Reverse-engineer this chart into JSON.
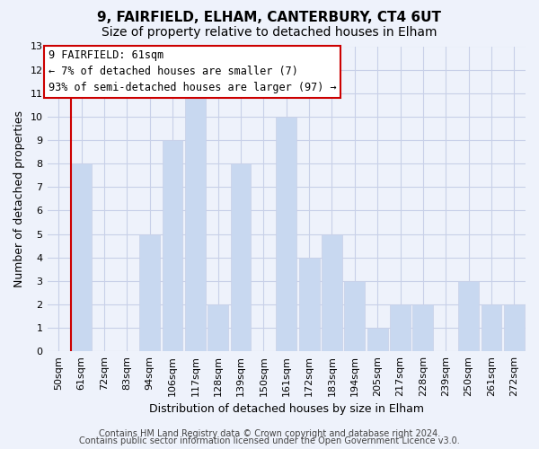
{
  "title": "9, FAIRFIELD, ELHAM, CANTERBURY, CT4 6UT",
  "subtitle": "Size of property relative to detached houses in Elham",
  "xlabel": "Distribution of detached houses by size in Elham",
  "ylabel": "Number of detached properties",
  "categories": [
    "50sqm",
    "61sqm",
    "72sqm",
    "83sqm",
    "94sqm",
    "106sqm",
    "117sqm",
    "128sqm",
    "139sqm",
    "150sqm",
    "161sqm",
    "172sqm",
    "183sqm",
    "194sqm",
    "205sqm",
    "217sqm",
    "228sqm",
    "239sqm",
    "250sqm",
    "261sqm",
    "272sqm"
  ],
  "values": [
    0,
    8,
    0,
    0,
    5,
    9,
    11,
    2,
    8,
    0,
    10,
    4,
    5,
    3,
    1,
    2,
    2,
    0,
    3,
    2,
    2
  ],
  "bar_color": "#c8d8f0",
  "marker_bar_index": 1,
  "ylim": [
    0,
    13
  ],
  "yticks": [
    0,
    1,
    2,
    3,
    4,
    5,
    6,
    7,
    8,
    9,
    10,
    11,
    12,
    13
  ],
  "annotation_title": "9 FAIRFIELD: 61sqm",
  "annotation_line1": "← 7% of detached houses are smaller (7)",
  "annotation_line2": "93% of semi-detached houses are larger (97) →",
  "annotation_box_color": "#ffffff",
  "annotation_box_edge": "#cc0000",
  "marker_line_color": "#cc0000",
  "footer_line1": "Contains HM Land Registry data © Crown copyright and database right 2024.",
  "footer_line2": "Contains public sector information licensed under the Open Government Licence v3.0.",
  "background_color": "#eef2fb",
  "grid_color": "#c8d0e8",
  "title_fontsize": 11,
  "subtitle_fontsize": 10,
  "axis_label_fontsize": 9,
  "tick_fontsize": 8,
  "footer_fontsize": 7
}
